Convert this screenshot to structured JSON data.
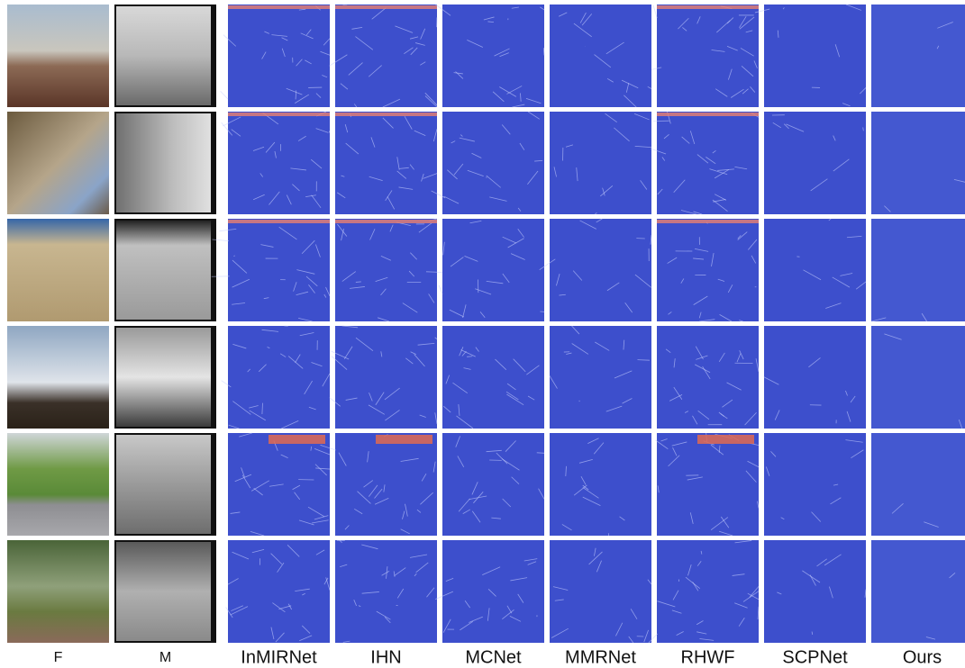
{
  "columns": [
    "F",
    "M",
    "InMIRNet",
    "IHN",
    "MCNet",
    "MMRNet",
    "RHWF",
    "SCPNet",
    "Ours"
  ]
}
